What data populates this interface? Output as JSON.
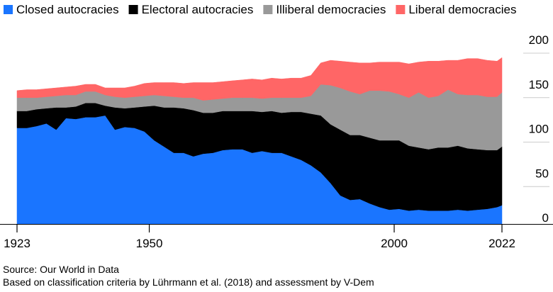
{
  "chart_data": {
    "type": "area",
    "stacked": true,
    "title": "",
    "xlabel": "",
    "ylabel": "",
    "xlim": [
      1923,
      2022
    ],
    "ylim": [
      0,
      200
    ],
    "x_ticks": [
      "1923",
      "1950",
      "2000",
      "2022"
    ],
    "y_ticks": [
      "200",
      "150",
      "100",
      "50",
      "0"
    ],
    "gridlines": true,
    "legend_position": "top-left",
    "x": [
      1923,
      1925,
      1927,
      1929,
      1931,
      1933,
      1935,
      1937,
      1939,
      1941,
      1943,
      1945,
      1947,
      1949,
      1951,
      1953,
      1955,
      1957,
      1959,
      1961,
      1963,
      1965,
      1967,
      1969,
      1971,
      1973,
      1975,
      1977,
      1979,
      1981,
      1983,
      1985,
      1987,
      1989,
      1991,
      1993,
      1995,
      1997,
      1999,
      2001,
      2003,
      2005,
      2007,
      2009,
      2011,
      2013,
      2015,
      2017,
      2019,
      2021,
      2022
    ],
    "series": [
      {
        "name": "Closed autocracies",
        "color": "#1a75ff",
        "values": [
          108,
          108,
          110,
          113,
          106,
          119,
          118,
          120,
          120,
          122,
          106,
          109,
          108,
          104,
          94,
          87,
          80,
          80,
          76,
          79,
          80,
          83,
          84,
          84,
          80,
          82,
          80,
          80,
          76,
          72,
          66,
          58,
          46,
          32,
          27,
          28,
          23,
          19,
          16,
          17,
          15,
          16,
          15,
          15,
          15,
          16,
          15,
          16,
          17,
          19,
          21
        ]
      },
      {
        "name": "Electoral autocracies",
        "color": "#000000",
        "values": [
          19,
          19,
          19,
          17,
          25,
          12,
          14,
          16,
          16,
          11,
          25,
          21,
          23,
          28,
          39,
          44,
          51,
          50,
          52,
          46,
          45,
          44,
          43,
          43,
          47,
          44,
          47,
          45,
          50,
          54,
          58,
          64,
          66,
          74,
          73,
          72,
          74,
          75,
          78,
          77,
          73,
          70,
          69,
          71,
          71,
          72,
          70,
          68,
          66,
          64,
          66
        ]
      },
      {
        "name": "Illiberal democracies",
        "color": "#999999",
        "values": [
          15,
          15,
          13,
          13,
          13,
          14,
          13,
          13,
          13,
          12,
          12,
          12,
          12,
          12,
          12,
          13,
          12,
          12,
          14,
          14,
          15,
          14,
          15,
          15,
          15,
          15,
          15,
          17,
          16,
          16,
          20,
          35,
          44,
          47,
          49,
          46,
          53,
          56,
          55,
          52,
          54,
          62,
          58,
          58,
          65,
          58,
          60,
          61,
          60,
          60,
          61
        ]
      },
      {
        "name": "Liberal democracies",
        "color": "#ff6666",
        "values": [
          8,
          9,
          9,
          9,
          9,
          9,
          10,
          8,
          8,
          8,
          10,
          11,
          12,
          14,
          14,
          15,
          16,
          16,
          17,
          20,
          19,
          19,
          19,
          20,
          21,
          21,
          22,
          21,
          22,
          22,
          23,
          24,
          28,
          30,
          33,
          35,
          31,
          32,
          33,
          36,
          38,
          34,
          41,
          39,
          33,
          38,
          41,
          41,
          41,
          40,
          39
        ]
      }
    ]
  },
  "footer": {
    "source": "Source: Our World in Data",
    "criteria": "Based on classification criteria by Lührmann et al. (2018) and assessment by V-Dem"
  }
}
